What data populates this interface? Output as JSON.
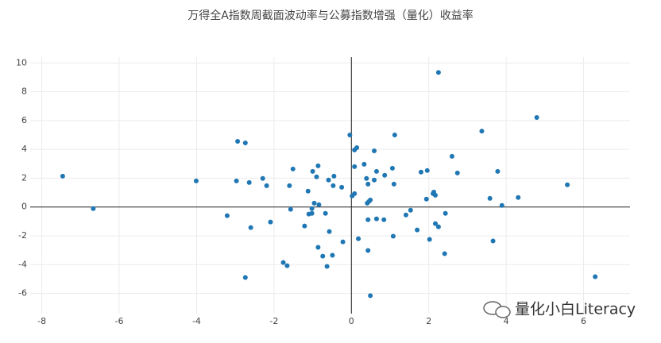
{
  "chart_data": {
    "type": "scatter",
    "title": "万得全A指数周截面波动率与公募指数增强（量化）收益率",
    "watermark": "量化小白Literacy",
    "color": "#1f77b4",
    "grid": true,
    "xlim": [
      -8.3,
      7.2
    ],
    "ylim": [
      -7.4,
      10.4
    ],
    "xticks": [
      -8,
      -6,
      -4,
      -2,
      0,
      2,
      4,
      6
    ],
    "yticks": [
      -6,
      -4,
      -2,
      0,
      2,
      4,
      6,
      8,
      10
    ],
    "x": [
      -7.46,
      -6.67,
      -4.01,
      -3.21,
      -2.94,
      -2.74,
      -2.97,
      -2.64,
      -2.6,
      -2.74,
      -2.29,
      -2.19,
      -2.09,
      -1.51,
      -1.6,
      -1.57,
      -1.76,
      -1.66,
      -1.21,
      -1.12,
      -1.1,
      -1.02,
      -1.0,
      -0.86,
      -0.9,
      -0.96,
      -0.84,
      -1.02,
      -0.67,
      -0.86,
      -0.74,
      -0.63,
      -0.57,
      -0.59,
      -0.47,
      -0.45,
      -0.49,
      -0.25,
      -0.22,
      -0.04,
      0.02,
      0.08,
      0.08,
      0.14,
      0.08,
      0.18,
      0.33,
      0.41,
      0.45,
      0.49,
      0.39,
      0.43,
      0.43,
      0.59,
      0.59,
      0.65,
      0.65,
      0.84,
      0.43,
      0.49,
      0.86,
      1.06,
      1.1,
      1.12,
      1.08,
      1.41,
      1.53,
      1.7,
      1.8,
      1.96,
      1.94,
      2.02,
      2.11,
      2.13,
      2.17,
      2.17,
      2.25,
      2.25,
      2.43,
      2.41,
      2.6,
      2.74,
      3.37,
      3.58,
      3.66,
      3.78,
      3.89,
      4.31,
      4.79,
      5.58,
      6.3
    ],
    "values": [
      2.14,
      -0.11,
      1.81,
      -0.6,
      4.56,
      4.45,
      1.81,
      1.7,
      -1.43,
      -4.89,
      1.98,
      1.48,
      -1.04,
      2.64,
      1.48,
      -0.16,
      -3.85,
      -4.07,
      -1.32,
      1.1,
      -0.49,
      -0.44,
      2.47,
      2.86,
      2.09,
      0.27,
      0.16,
      -0.11,
      -0.44,
      -2.8,
      -3.41,
      -4.12,
      -1.7,
      1.87,
      1.48,
      2.14,
      -3.35,
      1.37,
      -2.42,
      5.0,
      0.77,
      0.93,
      3.96,
      4.12,
      2.8,
      -2.2,
      2.97,
      0.27,
      0.38,
      0.49,
      1.98,
      1.59,
      -0.88,
      1.87,
      3.9,
      2.47,
      -0.82,
      -0.88,
      -3.02,
      -6.15,
      2.2,
      2.69,
      1.59,
      5.0,
      -2.03,
      -0.55,
      -0.22,
      -1.59,
      2.42,
      2.53,
      0.55,
      -2.25,
      0.93,
      1.04,
      0.82,
      -1.15,
      -1.37,
      9.34,
      -0.44,
      -3.24,
      3.52,
      2.36,
      5.27,
      0.6,
      -2.36,
      2.47,
      0.11,
      0.66,
      6.21,
      1.54,
      -4.84
    ]
  }
}
